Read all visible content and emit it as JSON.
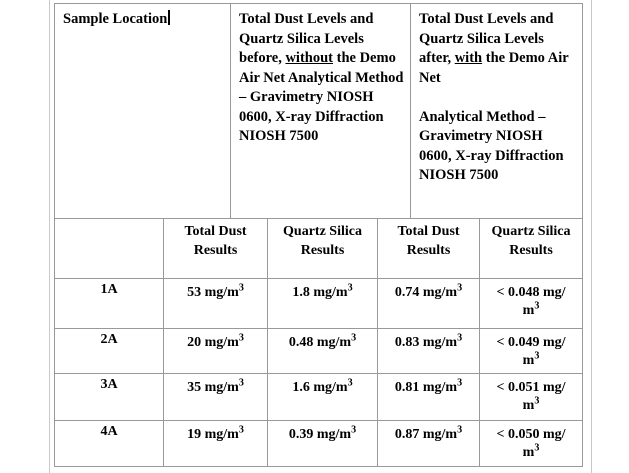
{
  "page": {
    "background": "#ffffff",
    "table_border_color": "#999999",
    "margin_boundary_color": "#c9c9c9",
    "text_color": "#000000"
  },
  "header_row": {
    "col1": "Sample Location",
    "col2": {
      "pre": "Total Dust Levels and Quartz Silica Levels before, ",
      "underlined": "without",
      "post": " the Demo Air Net Analytical Method – Gravimetry NIOSH 0600, X-ray Diffraction NIOSH 7500"
    },
    "col3": {
      "pre": "Total Dust Levels and Quartz Silica Levels after, ",
      "underlined": "with",
      "post": " the Demo Air Net",
      "para2": "Analytical Method – Gravimetry NIOSH 0600, X-ray Diffraction NIOSH 7500"
    }
  },
  "subheader_row": [
    "",
    "Total Dust Results",
    "Quartz Silica Results",
    "Total Dust Results",
    "Quartz Silica Results"
  ],
  "rows": [
    {
      "label": "1A",
      "total_before": {
        "t": "53 mg/m",
        "sup": "3"
      },
      "quartz_before": {
        "t": "1.8 mg/m",
        "sup": "3"
      },
      "total_after": {
        "t": "0.74 mg/m",
        "sup": "3"
      },
      "quartz_after": {
        "l1": "< 0.048 mg/",
        "l2": "m",
        "sup": "3"
      }
    },
    {
      "label": "2A",
      "total_before": {
        "t": "20 mg/m",
        "sup": "3"
      },
      "quartz_before": {
        "t": "0.48 mg/m",
        "sup": "3"
      },
      "total_after": {
        "t": "0.83 mg/m",
        "sup": "3"
      },
      "quartz_after": {
        "l1": "< 0.049 mg/",
        "l2": "m",
        "sup": "3"
      }
    },
    {
      "label": "3A",
      "total_before": {
        "t": "35 mg/m",
        "sup": "3"
      },
      "quartz_before": {
        "t": "1.6 mg/m",
        "sup": "3"
      },
      "total_after": {
        "t": "0.81 mg/m",
        "sup": "3"
      },
      "quartz_after": {
        "l1": "< 0.051 mg/",
        "l2": "m",
        "sup": "3"
      }
    },
    {
      "label": "4A",
      "total_before": {
        "t": "19 mg/m",
        "sup": "3"
      },
      "quartz_before": {
        "t": "0.39 mg/m",
        "sup": "3"
      },
      "total_after": {
        "t": "0.87 mg/m",
        "sup": "3"
      },
      "quartz_after": {
        "l1": "< 0.050 mg/",
        "l2": "m",
        "sup": "3"
      }
    }
  ]
}
